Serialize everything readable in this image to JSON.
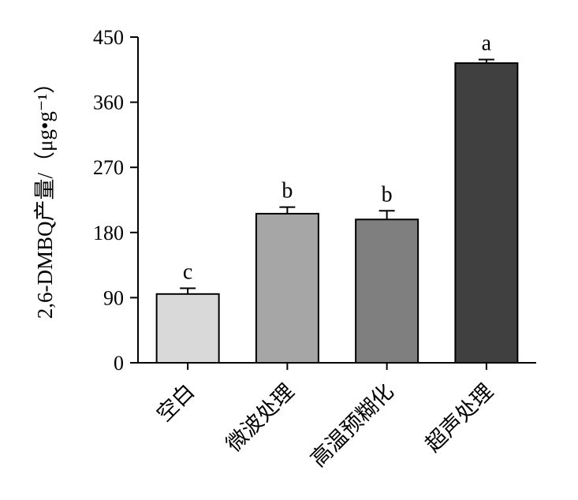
{
  "chart_data": {
    "type": "bar",
    "categories": [
      "空白",
      "微波处理",
      "高温预糊化",
      "超声处理"
    ],
    "values": [
      95,
      206,
      198,
      414
    ],
    "errors": [
      8,
      9,
      12,
      5
    ],
    "significance": [
      "c",
      "b",
      "b",
      "a"
    ],
    "bar_colors": [
      "#d9d9d9",
      "#a6a6a6",
      "#7f7f7f",
      "#404040"
    ],
    "ylabel": "2,6-DMBQ产量/（μg•g⁻¹）",
    "xlabel": "",
    "ylim": [
      0,
      450
    ],
    "yticks": [
      0,
      90,
      180,
      270,
      360,
      450
    ],
    "grid": false
  }
}
